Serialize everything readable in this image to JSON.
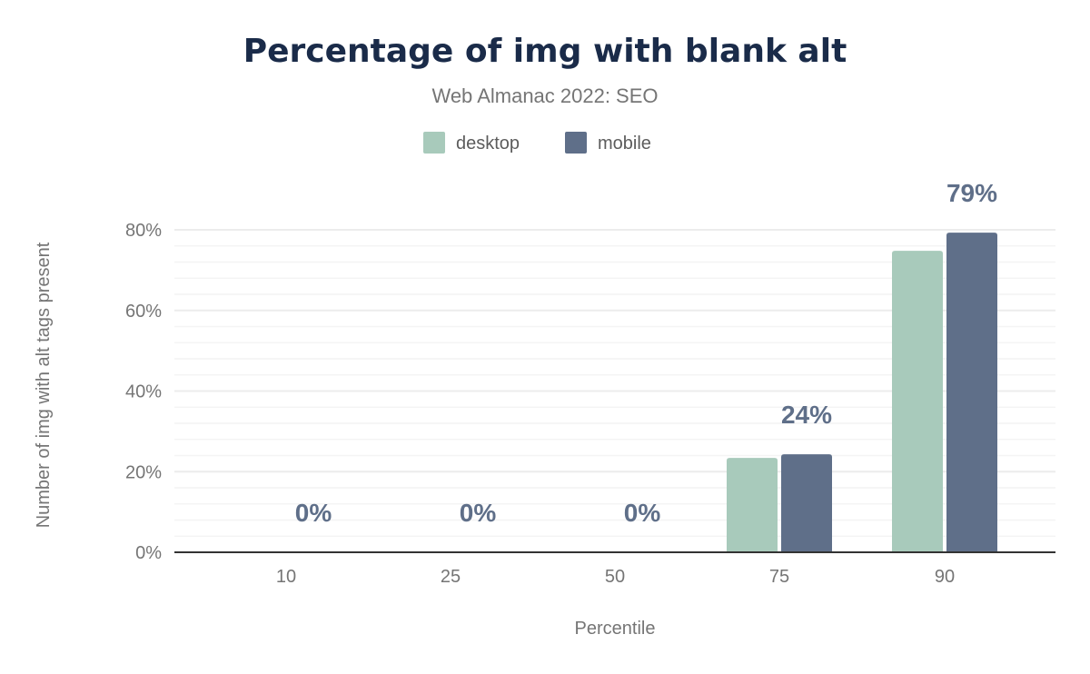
{
  "chart_data": {
    "type": "bar",
    "title": "Percentage of img with blank alt",
    "subtitle": "Web Almanac 2022: SEO",
    "xlabel": "Percentile",
    "ylabel": "Number of img with alt tags present",
    "categories": [
      "10",
      "25",
      "50",
      "75",
      "90"
    ],
    "series": [
      {
        "name": "desktop",
        "color": "#a8cabb",
        "values": [
          0,
          0,
          0,
          23.4,
          74.8
        ]
      },
      {
        "name": "mobile",
        "color": "#5f6f89",
        "values": [
          0,
          0,
          0,
          24.3,
          79.3
        ]
      }
    ],
    "data_labels": [
      "0%",
      "0%",
      "0%",
      "24%",
      "79%"
    ],
    "data_label_series": "mobile",
    "yticks": [
      "0%",
      "20%",
      "40%",
      "60%",
      "80%"
    ],
    "ylim": [
      0,
      80
    ],
    "grid": true,
    "legend_position": "top"
  }
}
